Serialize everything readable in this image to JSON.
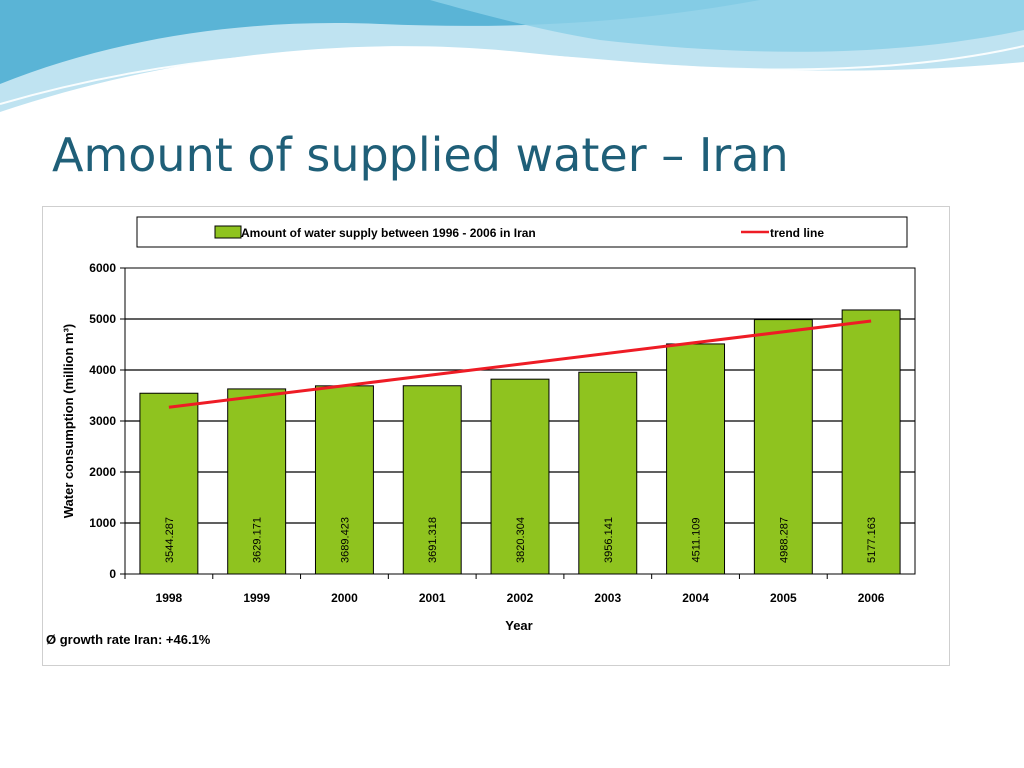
{
  "slide": {
    "title": "Amount of supplied water – Iran"
  },
  "colors": {
    "title": "#1f5f78",
    "bar_fill": "#8fc31f",
    "bar_stroke": "#000000",
    "trend_line": "#ee1c25",
    "swoosh_dark": "#5ab4d6",
    "swoosh_light": "#bfe3f1"
  },
  "chart_data": {
    "type": "bar",
    "categories": [
      "1998",
      "1999",
      "2000",
      "2001",
      "2002",
      "2003",
      "2004",
      "2005",
      "2006"
    ],
    "series": [
      {
        "name": "Amount of water supply between 1996 - 2006 in Iran",
        "values": [
          3544.287,
          3629.171,
          3689.423,
          3691.318,
          3820.304,
          3956.141,
          4511.109,
          4988.287,
          5177.163
        ],
        "value_labels": [
          "3544.287",
          "3629.171",
          "3689.423",
          "3691.318",
          "3820.304",
          "3956.141",
          "4511.109",
          "4988.287",
          "5177.163"
        ]
      }
    ],
    "trend_line": {
      "name": "trend line",
      "start_value": 3270,
      "end_value": 4960
    },
    "xlabel": "Year",
    "ylabel": "Water consumption (million m³)",
    "ylim": [
      0,
      6000
    ],
    "yticks": [
      "0",
      "1000",
      "2000",
      "3000",
      "4000",
      "5000",
      "6000"
    ],
    "grid": true,
    "legend_position": "top",
    "note": "Ø growth rate Iran: +46.1%"
  }
}
